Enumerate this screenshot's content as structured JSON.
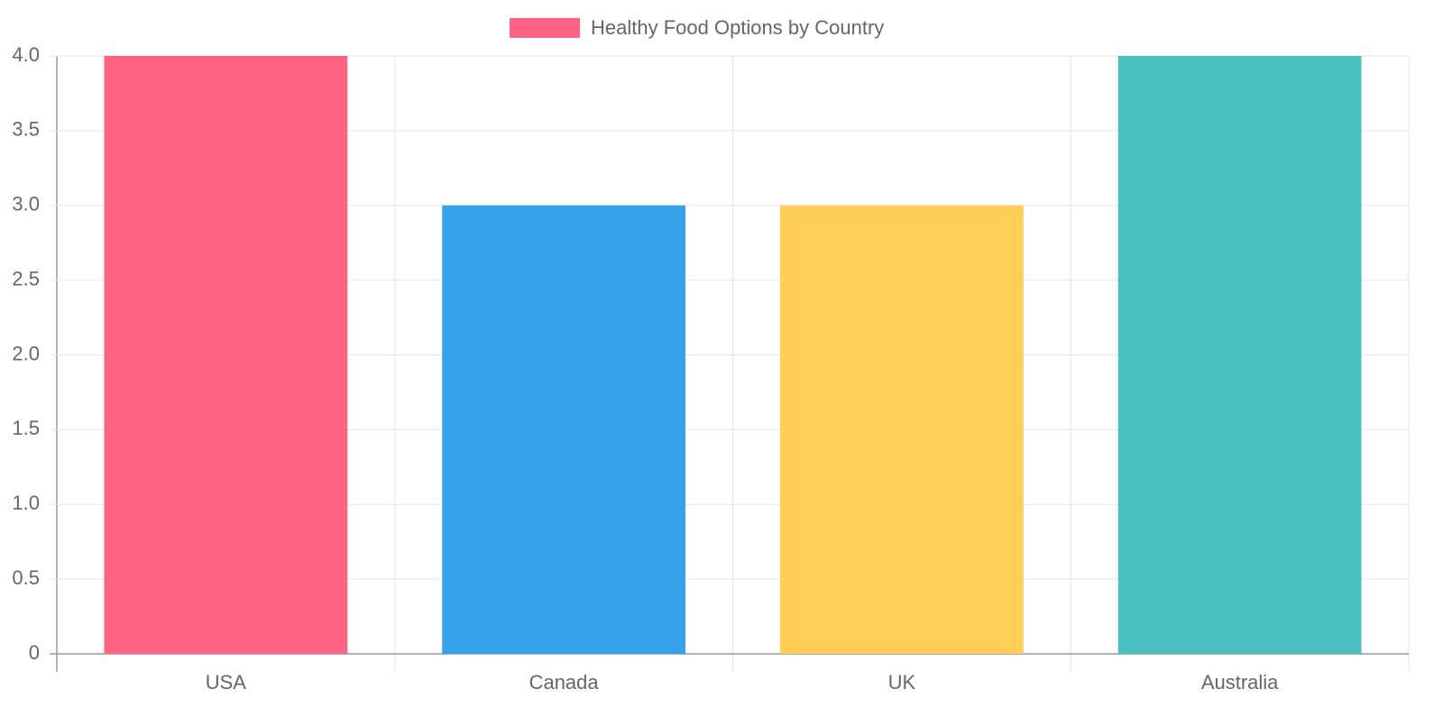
{
  "chart_data": {
    "type": "bar",
    "categories": [
      "USA",
      "Canada",
      "UK",
      "Australia"
    ],
    "series": [
      {
        "name": "Healthy Food Options by Country",
        "colors": [
          "#ff6384",
          "#36a2eb",
          "#ffce56",
          "#4bc0c0"
        ],
        "values": [
          4,
          3,
          3,
          4
        ]
      }
    ],
    "ylim": [
      0,
      4
    ],
    "yticks": [
      0,
      0.5,
      {
        "value": 1,
        "label": "1.0"
      },
      1.5,
      {
        "value": 2,
        "label": "2.0"
      },
      2.5,
      {
        "value": 3,
        "label": "3.0"
      },
      3.5,
      {
        "value": 4,
        "label": "4.0"
      }
    ],
    "grid": true
  }
}
